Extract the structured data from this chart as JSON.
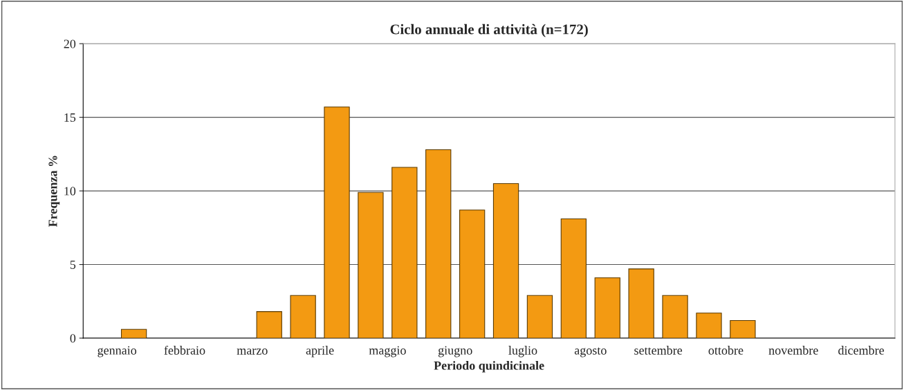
{
  "chart_data": {
    "type": "bar",
    "title": "Ciclo annuale di attività (n=172)",
    "xlabel": "Periodo quindicinale",
    "ylabel": "Frequenza %",
    "categories": [
      "gennaio",
      null,
      "febbraio",
      null,
      "marzo",
      null,
      "aprile",
      null,
      "maggio",
      null,
      "giugno",
      null,
      "luglio",
      null,
      "agosto",
      null,
      "settembre",
      null,
      "ottobre",
      null,
      "novembre",
      null,
      "dicembre",
      null
    ],
    "values": [
      0,
      0.6,
      0,
      0,
      0,
      1.8,
      2.9,
      15.7,
      9.9,
      11.6,
      12.8,
      8.7,
      10.5,
      2.9,
      8.1,
      4.1,
      4.7,
      2.9,
      1.7,
      1.2,
      0,
      0,
      0,
      0
    ],
    "color": "#f39a12",
    "ylim": [
      0,
      20
    ],
    "yticks": [
      0,
      5,
      10,
      15,
      20
    ],
    "grid": "y",
    "legend": false
  }
}
